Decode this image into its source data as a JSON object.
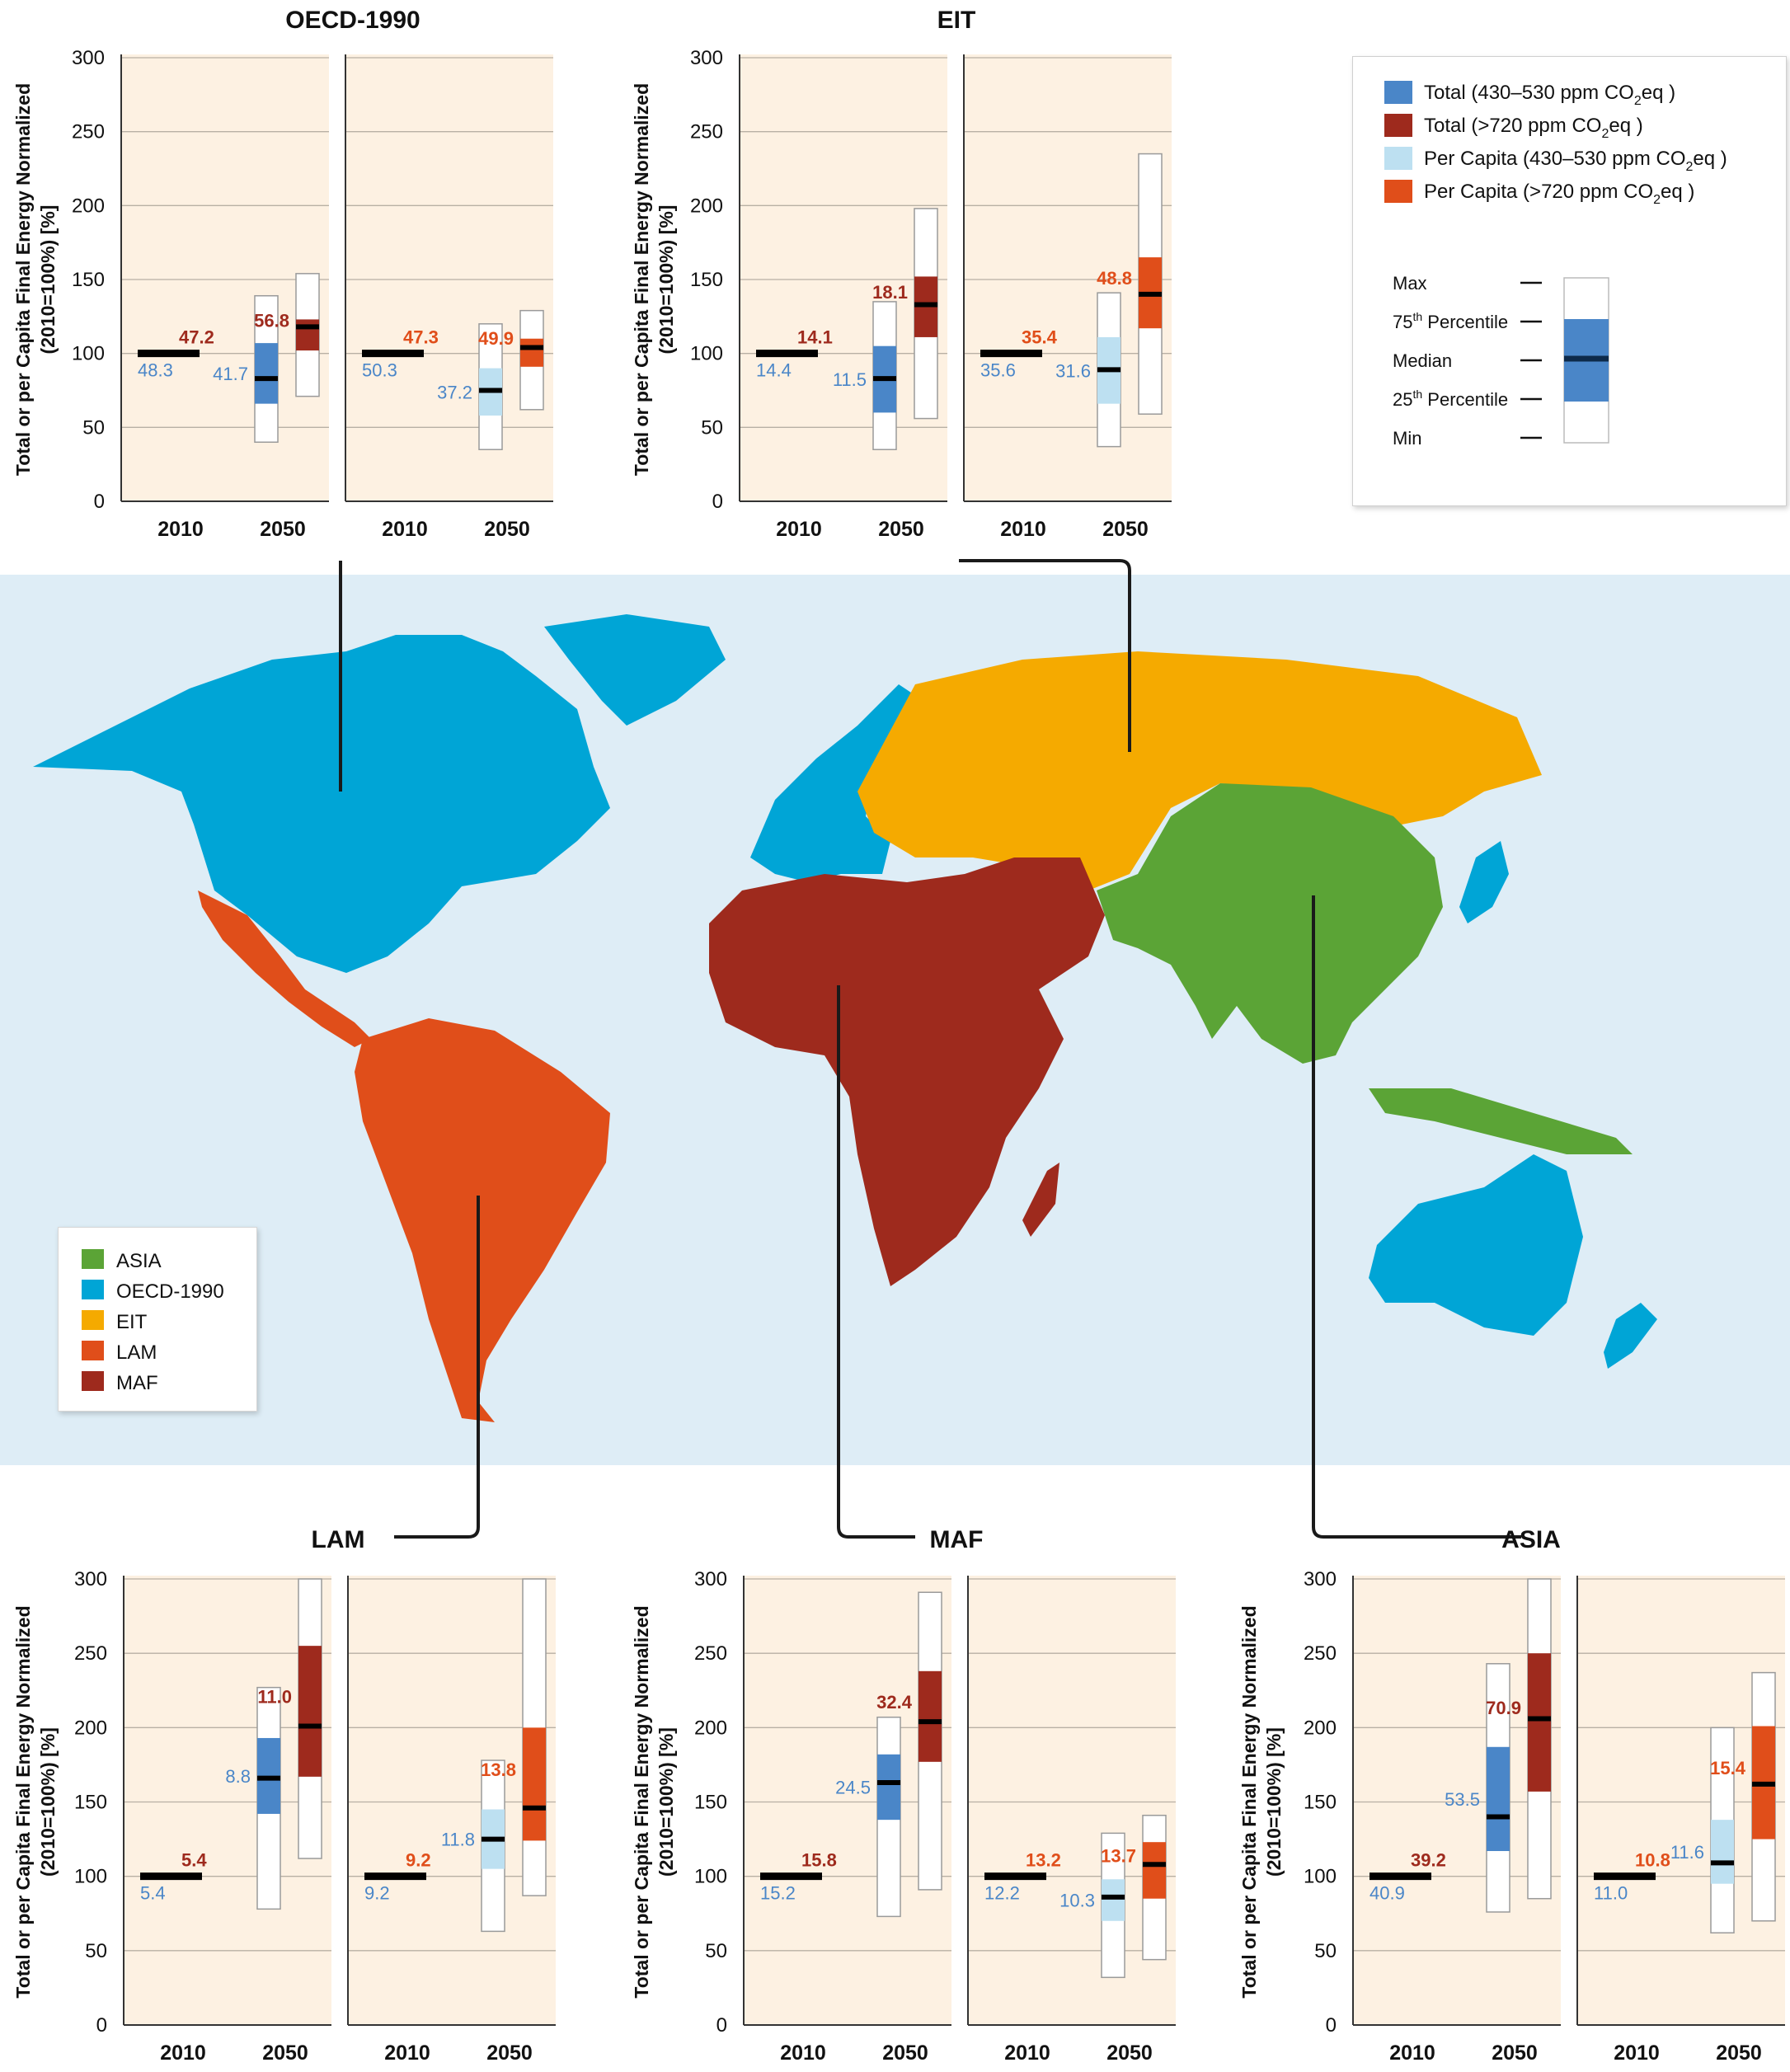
{
  "colors": {
    "total_low": "#4a86c8",
    "total_high": "#9e2a1d",
    "pc_low": "#bde0f1",
    "pc_high": "#e04e1a",
    "panel_bg": "#fdf1e2",
    "label_blue": "#4a86c8",
    "label_darkred": "#9e2a1d",
    "label_orange": "#e04e1a",
    "ocean": "#deedf6",
    "region_asia": "#5ba436",
    "region_oecd": "#00a5d6",
    "region_eit": "#f5aa00",
    "region_lam": "#e04e1a",
    "region_maf": "#9e2a1d"
  },
  "legend": {
    "items": [
      {
        "key": "total_low",
        "label": "Total (430–530 ppm CO",
        "sub": "2",
        "tail": "eq )"
      },
      {
        "key": "total_high",
        "label": "Total (>720 ppm CO",
        "sub": "2",
        "tail": "eq )"
      },
      {
        "key": "pc_low",
        "label": "Per Capita (430–530 ppm CO",
        "sub": "2",
        "tail": "eq )"
      },
      {
        "key": "pc_high",
        "label": "Per Capita (>720 ppm CO",
        "sub": "2",
        "tail": "eq )"
      }
    ],
    "boxplot_key": {
      "max": "Max",
      "p75_base": "75",
      "p75_sup": "th",
      "p75_tail": " Percentile",
      "median": "Median",
      "p25_base": "25",
      "p25_sup": "th",
      "p25_tail": " Percentile",
      "min": "Min"
    }
  },
  "map_legend": [
    {
      "label": "ASIA",
      "key": "region_asia"
    },
    {
      "label": "OECD-1990",
      "key": "region_oecd"
    },
    {
      "label": "EIT",
      "key": "region_eit"
    },
    {
      "label": "LAM",
      "key": "region_lam"
    },
    {
      "label": "MAF",
      "key": "region_maf"
    }
  ],
  "chart_data": [
    {
      "type": "boxplot",
      "title": "OECD-1990",
      "ylabel": "Total or per Capita Final Energy Normalized (2010=100%) [%]",
      "ylim": [
        0,
        300
      ],
      "yticks": [
        0,
        50,
        100,
        150,
        200,
        250,
        300
      ],
      "panels": [
        {
          "kind": "Total",
          "xticks": [
            "2010",
            "2050"
          ],
          "base_label_high": "47.2",
          "base_label_low": "48.3",
          "low": {
            "min": 40,
            "p25": 66,
            "median": 83,
            "p75": 107,
            "max": 139,
            "label": "41.7"
          },
          "high": {
            "min": 71,
            "p25": 102,
            "median": 118,
            "p75": 123,
            "max": 154,
            "label": "56.8"
          }
        },
        {
          "kind": "Per Capita",
          "xticks": [
            "2010",
            "2050"
          ],
          "base_label_high": "47.3",
          "base_label_low": "50.3",
          "low": {
            "min": 35,
            "p25": 58,
            "median": 75,
            "p75": 90,
            "max": 120,
            "label": "37.2"
          },
          "high": {
            "min": 62,
            "p25": 91,
            "median": 104,
            "p75": 110,
            "max": 129,
            "label": "49.9"
          }
        }
      ]
    },
    {
      "type": "boxplot",
      "title": "EIT",
      "ylabel": "Total or per Capita Final Energy Normalized (2010=100%) [%]",
      "ylim": [
        0,
        300
      ],
      "yticks": [
        0,
        50,
        100,
        150,
        200,
        250,
        300
      ],
      "panels": [
        {
          "kind": "Total",
          "xticks": [
            "2010",
            "2050"
          ],
          "base_label_high": "14.1",
          "base_label_low": "14.4",
          "low": {
            "min": 35,
            "p25": 60,
            "median": 83,
            "p75": 105,
            "max": 135,
            "label": "11.5"
          },
          "high": {
            "min": 56,
            "p25": 111,
            "median": 133,
            "p75": 152,
            "max": 198,
            "label": "18.1"
          }
        },
        {
          "kind": "Per Capita",
          "xticks": [
            "2010",
            "2050"
          ],
          "base_label_high": "35.4",
          "base_label_low": "35.6",
          "low": {
            "min": 37,
            "p25": 66,
            "median": 89,
            "p75": 111,
            "max": 141,
            "label": "31.6"
          },
          "high": {
            "min": 59,
            "p25": 117,
            "median": 140,
            "p75": 165,
            "max": 235,
            "label": "48.8"
          }
        }
      ]
    },
    {
      "type": "boxplot",
      "title": "LAM",
      "ylabel": "Total or per Capita Final Energy Normalized (2010=100%) [%]",
      "ylim": [
        0,
        300
      ],
      "yticks": [
        0,
        50,
        100,
        150,
        200,
        250,
        300
      ],
      "panels": [
        {
          "kind": "Total",
          "xticks": [
            "2010",
            "2050"
          ],
          "base_label_high": "5.4",
          "base_label_low": "5.4",
          "low": {
            "min": 78,
            "p25": 142,
            "median": 166,
            "p75": 193,
            "max": 227,
            "label": "8.8"
          },
          "high": {
            "min": 112,
            "p25": 167,
            "median": 201,
            "p75": 255,
            "max": 300,
            "label": "11.0"
          }
        },
        {
          "kind": "Per Capita",
          "xticks": [
            "2010",
            "2050"
          ],
          "base_label_high": "9.2",
          "base_label_low": "9.2",
          "low": {
            "min": 63,
            "p25": 105,
            "median": 125,
            "p75": 145,
            "max": 178,
            "label": "11.8"
          },
          "high": {
            "min": 87,
            "p25": 124,
            "median": 146,
            "p75": 200,
            "max": 300,
            "label": "13.8"
          }
        }
      ]
    },
    {
      "type": "boxplot",
      "title": "MAF",
      "ylabel": "Total or per Capita Final Energy Normalized (2010=100%) [%]",
      "ylim": [
        0,
        300
      ],
      "yticks": [
        0,
        50,
        100,
        150,
        200,
        250,
        300
      ],
      "panels": [
        {
          "kind": "Total",
          "xticks": [
            "2010",
            "2050"
          ],
          "base_label_high": "15.8",
          "base_label_low": "15.2",
          "low": {
            "min": 73,
            "p25": 138,
            "median": 163,
            "p75": 182,
            "max": 207,
            "label": "24.5"
          },
          "high": {
            "min": 91,
            "p25": 177,
            "median": 204,
            "p75": 238,
            "max": 291,
            "label": "32.4"
          }
        },
        {
          "kind": "Per Capita",
          "xticks": [
            "2010",
            "2050"
          ],
          "base_label_high": "13.2",
          "base_label_low": "12.2",
          "low": {
            "min": 32,
            "p25": 70,
            "median": 86,
            "p75": 98,
            "max": 129,
            "label": "10.3"
          },
          "high": {
            "min": 44,
            "p25": 85,
            "median": 108,
            "p75": 123,
            "max": 141,
            "label": "13.7"
          }
        }
      ]
    },
    {
      "type": "boxplot",
      "title": "ASIA",
      "ylabel": "Total or per Capita Final Energy Normalized (2010=100%) [%]",
      "ylim": [
        0,
        300
      ],
      "yticks": [
        0,
        50,
        100,
        150,
        200,
        250,
        300
      ],
      "panels": [
        {
          "kind": "Total",
          "xticks": [
            "2010",
            "2050"
          ],
          "base_label_high": "39.2",
          "base_label_low": "40.9",
          "low": {
            "min": 76,
            "p25": 117,
            "median": 140,
            "p75": 187,
            "max": 243,
            "label": "53.5"
          },
          "high": {
            "min": 85,
            "p25": 157,
            "median": 206,
            "p75": 250,
            "max": 300,
            "label": "70.9"
          }
        },
        {
          "kind": "Per Capita",
          "xticks": [
            "2010",
            "2050"
          ],
          "base_label_high": "10.8",
          "base_label_low": "11.0",
          "low": {
            "min": 62,
            "p25": 95,
            "median": 109,
            "p75": 138,
            "max": 200,
            "label": "11.6"
          },
          "high": {
            "min": 70,
            "p25": 125,
            "median": 162,
            "p75": 201,
            "max": 237,
            "label": "15.4"
          }
        }
      ]
    }
  ]
}
